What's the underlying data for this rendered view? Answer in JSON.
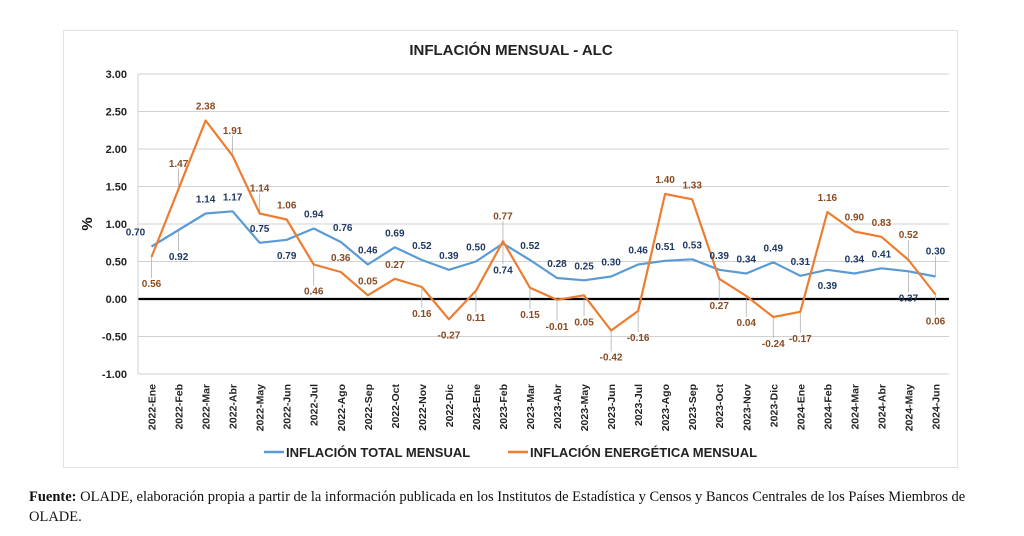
{
  "chart_data": {
    "type": "line",
    "title": "INFLACIÓN MENSUAL - ALC",
    "xlabel": "",
    "ylabel": "%",
    "ylim": [
      -1.0,
      3.0
    ],
    "yticks": [
      "3.00",
      "2.50",
      "2.00",
      "1.50",
      "1.00",
      "0.50",
      "0.00",
      "-0.50",
      "-1.00"
    ],
    "ytick_values": [
      3.0,
      2.5,
      2.0,
      1.5,
      1.0,
      0.5,
      0.0,
      -0.5,
      -1.0
    ],
    "grid": true,
    "legend_position": "bottom",
    "categories": [
      "2022-Ene",
      "2022-Feb",
      "2022-Mar",
      "2022-Abr",
      "2022-May",
      "2022-Jun",
      "2022-Jul",
      "2022-Ago",
      "2022-Sep",
      "2022-Oct",
      "2022-Nov",
      "2022-Dic",
      "2023-Ene",
      "2023-Feb",
      "2023-Mar",
      "2023-Abr",
      "2023-May",
      "2023-Jun",
      "2023-Jul",
      "2023-Ago",
      "2023-Sep",
      "2023-Oct",
      "2023-Nov",
      "2023-Dic",
      "2024-Ene",
      "2024-Feb",
      "2024-Mar",
      "2024-Abr",
      "2024-May",
      "2024-Jun"
    ],
    "series": [
      {
        "name": "INFLACIÓN TOTAL MENSUAL",
        "color": "#5b9bd5",
        "label_color": "#1f3864",
        "values": [
          0.7,
          0.92,
          1.14,
          1.17,
          0.75,
          0.79,
          0.94,
          0.76,
          0.46,
          0.69,
          0.52,
          0.39,
          0.5,
          0.74,
          0.52,
          0.28,
          0.25,
          0.3,
          0.46,
          0.51,
          0.53,
          0.39,
          0.34,
          0.49,
          0.31,
          0.39,
          0.34,
          0.41,
          0.37,
          0.3
        ],
        "labels": [
          "0.70",
          "0.92",
          "1.14",
          "1.17",
          "0.75",
          "0.79",
          "0.94",
          "0.76",
          "0.46",
          "0.69",
          "0.52",
          "0.39",
          "0.50",
          "0.74",
          "0.52",
          "0.28",
          "0.25",
          "0.30",
          "0.46",
          "0.51",
          "0.53",
          "0.39",
          "0.34",
          "0.49",
          "0.31",
          "0.39",
          "0.34",
          "0.41",
          "0.37",
          "0.30"
        ]
      },
      {
        "name": "INFLACIÓN ENERGÉTICA MENSUAL",
        "color": "#ed7d31",
        "label_color": "#8a4b21",
        "values": [
          0.56,
          1.47,
          2.38,
          1.91,
          1.14,
          1.06,
          0.46,
          0.36,
          0.05,
          0.27,
          0.16,
          -0.27,
          0.11,
          0.77,
          0.15,
          -0.01,
          0.05,
          -0.42,
          -0.16,
          1.4,
          1.33,
          0.27,
          0.04,
          -0.24,
          -0.17,
          1.16,
          0.9,
          0.83,
          0.52,
          0.06
        ],
        "labels": [
          "0.56",
          "1.47",
          "2.38",
          "1.91",
          "1.14",
          "1.06",
          "0.46",
          "0.36",
          "0.05",
          "0.27",
          "0.16",
          "-0.27",
          "0.11",
          "0.77",
          "0.15",
          "-0.01",
          "0.05",
          "-0.42",
          "-0.16",
          "1.40",
          "1.33",
          "0.27",
          "0.04",
          "-0.24",
          "-0.17",
          "1.16",
          "0.90",
          "0.83",
          "0.52",
          "0.06"
        ]
      }
    ]
  },
  "source": {
    "label": "Fuente:",
    "text": " OLADE, elaboración propia a partir de la información publicada en los Institutos de Estadística y Censos y Bancos Centrales de los Países Miembros de OLADE."
  }
}
